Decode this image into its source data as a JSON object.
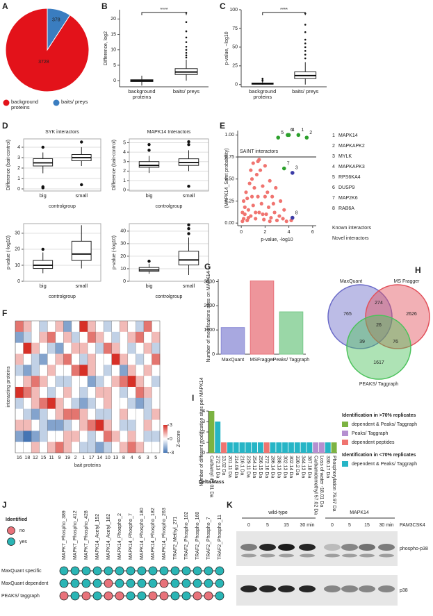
{
  "chart_data": [
    {
      "panel": "A",
      "type": "pie",
      "categories": [
        "background proteins",
        "baits/ preys"
      ],
      "values": [
        3728,
        378
      ],
      "colors": [
        "#e3121a",
        "#3a7dc0"
      ]
    },
    {
      "panel": "B",
      "type": "box",
      "ylabel": "Difference, log2",
      "categories": [
        "background proteins",
        "baits/ preys"
      ],
      "ylim": [
        -2,
        23
      ],
      "yticks": [
        0,
        5,
        10,
        15,
        20
      ],
      "significance": "****",
      "boxes": [
        {
          "whislo": -1.6,
          "q1": -0.3,
          "med": 0,
          "q3": 0.3,
          "whishi": 1.6,
          "fliers": []
        },
        {
          "whislo": 0,
          "q1": 2,
          "med": 2.8,
          "q3": 3.9,
          "whishi": 6.8,
          "fliers": [
            7.5,
            8.2,
            9,
            10,
            11,
            12.5,
            14,
            16,
            19,
            22
          ]
        }
      ]
    },
    {
      "panel": "C",
      "type": "box",
      "ylabel": "p-value, −log10",
      "categories": [
        "background proteins",
        "baits/ preys"
      ],
      "ylim": [
        -3,
        100
      ],
      "yticks": [
        0,
        25,
        50,
        75,
        100
      ],
      "significance": "****",
      "boxes": [
        {
          "whislo": 0,
          "q1": 0.5,
          "med": 1,
          "q3": 2,
          "whishi": 4,
          "fliers": [
            5,
            6,
            8
          ]
        },
        {
          "whislo": 0,
          "q1": 8,
          "med": 12,
          "q3": 17,
          "whishi": 30,
          "fliers": [
            35,
            40,
            45,
            50,
            55,
            60,
            70,
            80,
            95
          ]
        }
      ]
    },
    {
      "panel": "D",
      "type": "box",
      "title": "SYK interactors",
      "ylabel": "Difference (bait-control)",
      "xlabel": "controlgroup",
      "categories": [
        "big",
        "small"
      ],
      "ylim": [
        -0.2,
        4.8
      ],
      "yticks": [
        0,
        1,
        2,
        3,
        4
      ],
      "grid": true,
      "boxes": [
        {
          "whislo": 1.5,
          "q1": 2.2,
          "med": 2.5,
          "q3": 2.9,
          "whishi": 3.5,
          "fliers": [
            0.1,
            0.2,
            4
          ]
        },
        {
          "whislo": 2.2,
          "q1": 2.7,
          "med": 3,
          "q3": 3.3,
          "whishi": 4,
          "fliers": [
            0.4,
            4.5
          ]
        }
      ]
    },
    {
      "type": "box",
      "title": "MAPK14 Interactors",
      "ylabel": "Difference (bait-control)",
      "xlabel": "controlgroup",
      "categories": [
        "big",
        "small"
      ],
      "ylim": [
        -0.1,
        5.4
      ],
      "yticks": [
        0,
        1,
        2,
        3,
        4,
        5
      ],
      "grid": true,
      "boxes": [
        {
          "whislo": 1.8,
          "q1": 2.4,
          "med": 2.6,
          "q3": 3,
          "whishi": 3.6,
          "fliers": [
            4.2,
            4.8
          ]
        },
        {
          "whislo": 2,
          "q1": 2.6,
          "med": 2.9,
          "q3": 3.3,
          "whishi": 4.2,
          "fliers": [
            0.4,
            4.8,
            5.1
          ]
        }
      ]
    },
    {
      "type": "box",
      "ylabel": "p-value (-log10)",
      "xlabel": "controlgroup",
      "categories": [
        "big",
        "small"
      ],
      "ylim": [
        0,
        36
      ],
      "yticks": [
        0,
        10,
        20,
        30
      ],
      "grid": true,
      "boxes": [
        {
          "whislo": 5,
          "q1": 8,
          "med": 10,
          "q3": 13,
          "whishi": 18,
          "fliers": [
            20
          ]
        },
        {
          "whislo": 8,
          "q1": 13,
          "med": 17,
          "q3": 25,
          "whishi": 35,
          "fliers": []
        }
      ]
    },
    {
      "type": "box",
      "ylabel": "p-value (-log10)",
      "xlabel": "controlgroup",
      "categories": [
        "big",
        "small"
      ],
      "ylim": [
        0,
        46
      ],
      "yticks": [
        0,
        10,
        20,
        30,
        40
      ],
      "grid": true,
      "boxes": [
        {
          "whislo": 6,
          "q1": 8,
          "med": 9,
          "q3": 11,
          "whishi": 14,
          "fliers": [
            16
          ]
        },
        {
          "whislo": 5,
          "q1": 13,
          "med": 17,
          "q3": 24,
          "whishi": 35,
          "fliers": [
            38,
            42,
            45
          ]
        }
      ]
    },
    {
      "panel": "E",
      "type": "scatter",
      "ylabel": "(MAPK14_Saint probability)",
      "xlabel": "p-value, -log10",
      "color": "#f07470",
      "xlim": [
        -0.3,
        6.3
      ],
      "xticks": [
        0,
        2,
        4,
        6
      ],
      "ylim": [
        -0.03,
        1.05
      ],
      "yticks": [
        {
          "value": 0,
          "label": "0.00"
        },
        {
          "value": 0.25,
          "label": "0.25"
        },
        {
          "value": 0.5,
          "label": "0.50"
        },
        {
          "value": 0.75,
          "label": "0.75"
        },
        {
          "value": 1,
          "label": "1.00"
        }
      ],
      "threshold": {
        "value": 0.75,
        "label": "SAINT interactors"
      },
      "x": [
        0.1,
        0.2,
        0.3,
        0.5,
        0.6,
        0.8,
        1.0,
        1.2,
        1.4,
        1.5,
        1.7,
        1.9,
        2.1,
        2.3,
        2.5,
        2.8,
        3.0,
        3.2,
        3.5,
        3.8,
        0.4,
        0.7,
        0.9,
        1.1,
        1.3,
        1.6,
        1.8,
        2.0,
        2.2,
        2.4,
        2.6,
        2.9,
        3.3,
        0.2,
        0.5,
        1.0,
        1.5,
        2.7,
        3.6,
        4.2,
        0.3,
        0.6,
        0.9,
        1.2,
        1.8,
        2.0,
        2.4,
        0.8,
        1.4,
        0.1
      ],
      "y": [
        0.02,
        0.05,
        0.1,
        0.03,
        0.15,
        0.08,
        0.2,
        0.05,
        0.3,
        0.12,
        0.22,
        0.04,
        0.1,
        0.18,
        0.06,
        0.12,
        0.03,
        0.08,
        0.05,
        0.02,
        0.35,
        0.45,
        0.5,
        0.4,
        0.55,
        0.6,
        0.42,
        0.65,
        0.35,
        0.48,
        0.3,
        0.4,
        0.25,
        0.25,
        0.28,
        0.68,
        0.72,
        0.22,
        0.15,
        0.03,
        0.18,
        0.06,
        0.3,
        0.12,
        0.1,
        0.3,
        0.02,
        0.6,
        0.7,
        0.12
      ],
      "interactors": [
        {
          "id": "1",
          "name": "MAPK14",
          "x": 4.8,
          "y": 1.0,
          "color": "#2ca02c"
        },
        {
          "id": "2",
          "name": "MAPKAPK2",
          "x": 5.5,
          "y": 0.97,
          "color": "#2ca02c"
        },
        {
          "id": "3",
          "name": "MYLK",
          "x": 4.3,
          "y": 0.57,
          "color": "#3b3ba6"
        },
        {
          "id": "4",
          "name": "MAPKAPK3",
          "x": 4.0,
          "y": 1.0,
          "color": "#2ca02c"
        },
        {
          "id": "5",
          "name": "RPS6KA4",
          "x": 3.1,
          "y": 0.97,
          "color": "#2ca02c"
        },
        {
          "id": "6",
          "name": "DUSP9",
          "x": 3.9,
          "y": 1.0,
          "color": "#2ca02c"
        },
        {
          "id": "7",
          "name": "MAP2K6",
          "x": 3.6,
          "y": 0.62,
          "color": "#2ca02c"
        },
        {
          "id": "8",
          "name": "RAB6A",
          "x": 4.3,
          "y": 0.06,
          "color": "#3b3ba6"
        }
      ],
      "legend": [
        {
          "label": "Known interactors",
          "color": "#2ca02c"
        },
        {
          "label": "Novel interactors",
          "color": "#3b3ba6"
        }
      ]
    },
    {
      "panel": "G",
      "type": "bar",
      "ylabel": "Number of modifications sites on MAPK14",
      "categories": [
        "MaxQuant",
        "MSFragger",
        "Peaks/ Taggraph"
      ],
      "values": [
        1100,
        3030,
        1750
      ],
      "colors": [
        "#8b8bd6",
        "#e8727a",
        "#78c98a"
      ],
      "ylim": [
        0,
        3100
      ],
      "yticks": [
        0,
        1000,
        2000,
        3000
      ]
    },
    {
      "panel": "I",
      "type": "bar",
      "ylabel": "Number of different modification sites per MAPK14",
      "xlabel": "Delta Mass",
      "rotate": true,
      "categories": [
        "Carbamyl 43.01 Da",
        "272.13 Da",
        "13.02 Da",
        "201.11 Da",
        "214.09 Da",
        "216.1 Da",
        "229.11 Da",
        "254.12 Da",
        "256.15 Da",
        "272.16 Da",
        "286.14 Da",
        "288.13 Da",
        "302.13 Da",
        "302.14 Da",
        "330.2 Da",
        "344.13 Da",
        "387.18 Da",
        "Carbamidomethyl 57.02 Da",
        "Loss of water -18.01 Da",
        "330.17 Da",
        "Phosphorylation 79.97 Da"
      ],
      "values": [
        4,
        3,
        1,
        1,
        1,
        1,
        1,
        1,
        1,
        1,
        1,
        1,
        1,
        1,
        1,
        1,
        1,
        1,
        1,
        1,
        1
      ],
      "colors": [
        "#7cb342",
        "#26b5c6",
        "#f07470",
        "#26b5c6",
        "#26b5c6",
        "#26b5c6",
        "#26b5c6",
        "#26b5c6",
        "#26b5c6",
        "#f07470",
        "#26b5c6",
        "#26b5c6",
        "#26b5c6",
        "#26b5c6",
        "#26b5c6",
        "#26b5c6",
        "#26b5c6",
        "#b58fd0",
        "#b58fd0",
        "#26b5c6",
        "#7cb342"
      ],
      "ylim": [
        0,
        4
      ],
      "yticks": [
        0,
        1,
        2,
        3,
        4
      ],
      "legend": [
        {
          "title": "Identification in >70% replicates",
          "items": [
            {
              "label": "dependent & Peaks/ Taggraph",
              "color": "#7cb342"
            },
            {
              "label": "Peaks/ Taggraph",
              "color": "#b58fd0"
            },
            {
              "label": "dependent peptides",
              "color": "#f07470"
            }
          ]
        },
        {
          "title": "Identification in <70% replicates",
          "items": [
            {
              "label": "dependent & Peaks/ Taggraph",
              "color": "#26b5c6"
            }
          ]
        }
      ]
    }
  ],
  "heatmap": {
    "panel": "F",
    "ylabel": "interacting proteins",
    "xlabel": "bait proteins",
    "columns": [
      "16",
      "18",
      "12",
      "15",
      "11",
      "9",
      "19",
      "2",
      "1",
      "17",
      "14",
      "10",
      "13",
      "8",
      "4",
      "6",
      "3",
      "5"
    ],
    "lim": [
      -3,
      3
    ],
    "values": [
      [
        2,
        1,
        0,
        -1,
        0,
        1,
        -2,
        0,
        3,
        1,
        0,
        -1,
        0,
        1,
        0,
        -1,
        2,
        0
      ],
      [
        -2,
        -1,
        0,
        1,
        2,
        0,
        1,
        -1,
        0,
        2,
        1,
        0,
        -1,
        0,
        1,
        2,
        0,
        1
      ],
      [
        0,
        3,
        1,
        0,
        -1,
        -2,
        0,
        1,
        1,
        0,
        -1,
        2,
        1,
        0,
        -1,
        0,
        1,
        -1
      ],
      [
        1,
        0,
        -1,
        -2,
        0,
        1,
        2,
        0,
        -1,
        1,
        0,
        0,
        3,
        1,
        0,
        -1,
        0,
        2
      ],
      [
        -1,
        -2,
        -1,
        0,
        1,
        0,
        0,
        2,
        3,
        1,
        0,
        -1,
        0,
        -2,
        1,
        0,
        1,
        0
      ],
      [
        0,
        1,
        2,
        1,
        0,
        -1,
        -1,
        0,
        0,
        -2,
        -1,
        0,
        1,
        2,
        3,
        1,
        0,
        -1
      ],
      [
        3,
        2,
        1,
        0,
        -1,
        0,
        1,
        0,
        -1,
        0,
        1,
        1,
        0,
        -1,
        0,
        2,
        1,
        0
      ],
      [
        -1,
        0,
        1,
        2,
        3,
        1,
        0,
        -1,
        -2,
        -1,
        0,
        1,
        0,
        0,
        -1,
        -2,
        -1,
        0
      ],
      [
        0,
        -1,
        -2,
        -1,
        0,
        1,
        2,
        2,
        1,
        0,
        -1,
        -1,
        0,
        1,
        0,
        0,
        -1,
        1
      ],
      [
        1,
        1,
        0,
        -1,
        -2,
        -2,
        -1,
        0,
        1,
        2,
        3,
        1,
        0,
        -1,
        -1,
        0,
        1,
        0
      ],
      [
        -2,
        -3,
        -2,
        -1,
        0,
        0,
        1,
        1,
        0,
        -1,
        0,
        2,
        1,
        0,
        1,
        0,
        -1,
        -1
      ],
      [
        0,
        0,
        1,
        0,
        1,
        2,
        1,
        0,
        -1,
        -1,
        -2,
        -1,
        0,
        1,
        2,
        1,
        0,
        0
      ]
    ],
    "colorbar": {
      "title": "Z-score",
      "ticks": [
        3,
        0,
        -3
      ]
    }
  },
  "venn": {
    "panel": "H",
    "sets": [
      "MaxQuant",
      "MS Fragger",
      "PEAKS/ Taggraph"
    ],
    "colors": [
      "#6a6ac8",
      "#e2505a",
      "#4cc25c"
    ],
    "counts": [
      765,
      274,
      2626,
      26,
      39,
      76,
      1617
    ]
  },
  "dot_grid": {
    "panel": "J",
    "legend_title": "Identified",
    "levels": [
      "no",
      "yes"
    ],
    "colors": [
      "#e8727a",
      "#2ab5b5"
    ],
    "columns": [
      "MAPK7_Phospho_389",
      "MAPK7_Phospho_412",
      "MAPK7_Phospho_428",
      "MAPK14_Acetyl_152",
      "MAPK14_Acetyl_162",
      "MAPK14_Phospho_2",
      "MAPK14_Phospho_7",
      "MAPK14_Phospho_180",
      "MAPK14_Phospho_182",
      "MAPK14_Phospho_263",
      "TRAF2_Methyl_271",
      "TRAF2_Phospho_102",
      "TRAF2_Phospho_160",
      "TRAF2_Phospho_7",
      "TRAF2_Phospho_11"
    ],
    "rows": [
      "MaxQuant specific",
      "MaxQuant dependent",
      "PEAKS/ taggraph"
    ],
    "values": [
      [
        1,
        1,
        1,
        1,
        1,
        1,
        1,
        1,
        1,
        1,
        1,
        1,
        1,
        1,
        1
      ],
      [
        1,
        1,
        1,
        1,
        0,
        1,
        1,
        1,
        1,
        0,
        1,
        1,
        1,
        1,
        1
      ],
      [
        0,
        1,
        0,
        1,
        0,
        0,
        1,
        1,
        0,
        0,
        1,
        1,
        0,
        0,
        1
      ]
    ]
  },
  "blot": {
    "panel": "K",
    "groups": [
      "wild-type",
      "MAPK14"
    ],
    "lanes": [
      "0",
      "5",
      "15",
      "30 min"
    ],
    "treatment": "PAM3CSK4",
    "bands": [
      "phospho-p38",
      "p38"
    ]
  }
}
